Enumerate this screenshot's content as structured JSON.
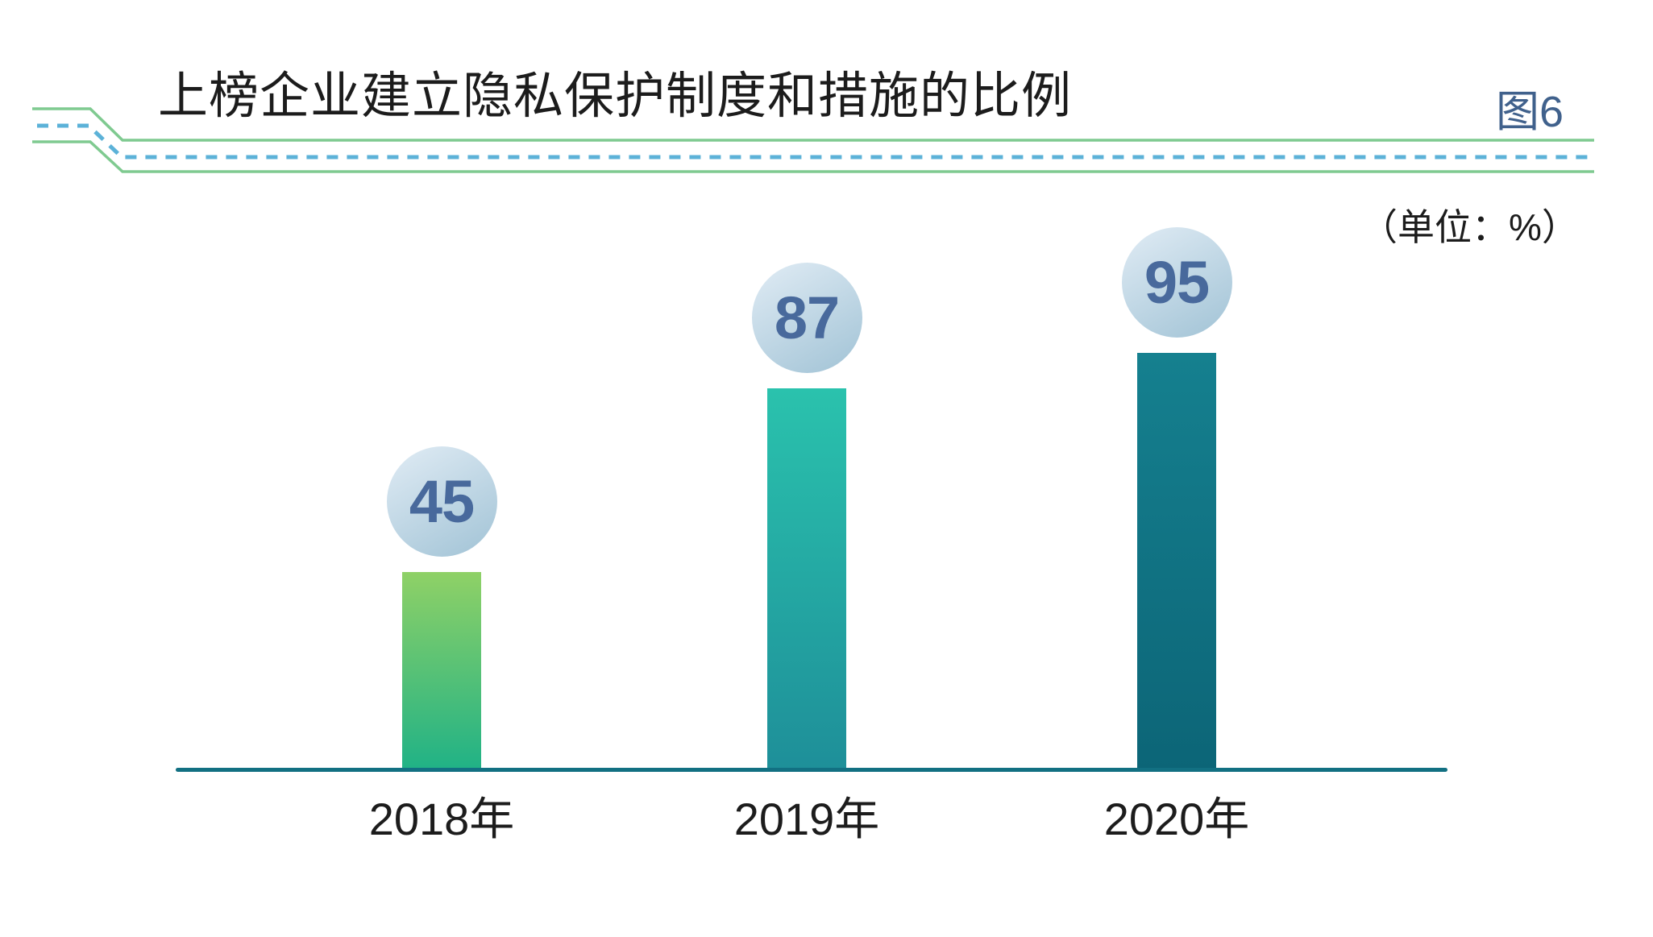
{
  "title": "上榜企业建立隐私保护制度和措施的比例",
  "figure_label": "图6",
  "unit_label": "（单位：%）",
  "chart_data": {
    "type": "bar",
    "title": "上榜企业建立隐私保护制度和措施的比例",
    "categories": [
      "2018年",
      "2019年",
      "2020年"
    ],
    "values": [
      45,
      87,
      95
    ],
    "unit": "%",
    "xlabel": "",
    "ylabel": "",
    "ylim": [
      0,
      100
    ],
    "grid": false,
    "legend": false,
    "value_label_style": "circular badge above each bar"
  },
  "colors": {
    "bar_gradients": [
      [
        "#8fd166",
        "#20b286"
      ],
      [
        "#2ac2ad",
        "#1e8f99"
      ],
      [
        "#15808f",
        "#0c6577"
      ]
    ],
    "circle_gradient": [
      "#d9e7f1",
      "#a6c6d8"
    ],
    "value_text": "#48699c",
    "axis_line": "#127082",
    "decor_green": "#7fca90",
    "decor_dashed_blue": "#5cb2d8",
    "figure_label_color": "#40618c",
    "text_color": "#1c1c1c"
  }
}
